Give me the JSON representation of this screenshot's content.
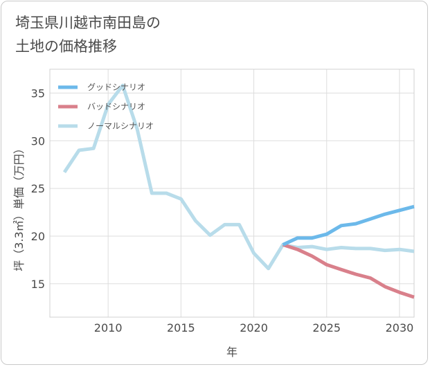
{
  "title_lines": [
    "埼玉県川越市南田島の",
    "土地の価格推移"
  ],
  "chart_data": {
    "type": "line",
    "xlabel": "年",
    "ylabel": "坪（3.3㎡）単価（万円）",
    "xlim": [
      2006,
      2031
    ],
    "ylim": [
      11.5,
      37.5
    ],
    "xticks": [
      2010,
      2015,
      2020,
      2025,
      2030
    ],
    "yticks": [
      15,
      20,
      25,
      30,
      35
    ],
    "grid": true,
    "legend_position": "top-left",
    "series": [
      {
        "name": "グッドシナリオ",
        "color": "#6cb9ea",
        "x": [
          2022,
          2023,
          2024,
          2025,
          2026,
          2027,
          2028,
          2029,
          2030,
          2031
        ],
        "y": [
          19.1,
          19.8,
          19.8,
          20.2,
          21.1,
          21.3,
          21.8,
          22.3,
          22.7,
          23.1
        ]
      },
      {
        "name": "バッドシナリオ",
        "color": "#d9808b",
        "x": [
          2022,
          2023,
          2024,
          2025,
          2026,
          2027,
          2028,
          2029,
          2030,
          2031
        ],
        "y": [
          19.1,
          18.6,
          17.9,
          17.0,
          16.5,
          16.0,
          15.6,
          14.7,
          14.1,
          13.6
        ]
      },
      {
        "name": "ノーマルシナリオ",
        "color": "#b8dcea",
        "x": [
          2007,
          2008,
          2009,
          2010,
          2011,
          2012,
          2013,
          2014,
          2015,
          2016,
          2017,
          2018,
          2019,
          2020,
          2021,
          2022,
          2023,
          2024,
          2025,
          2026,
          2027,
          2028,
          2029,
          2030,
          2031
        ],
        "y": [
          26.7,
          29.0,
          29.2,
          33.8,
          35.8,
          31.2,
          24.5,
          24.5,
          23.9,
          21.6,
          20.1,
          21.2,
          21.2,
          18.2,
          16.6,
          19.1,
          18.8,
          18.9,
          18.6,
          18.8,
          18.7,
          18.7,
          18.5,
          18.6,
          18.4
        ]
      }
    ]
  }
}
